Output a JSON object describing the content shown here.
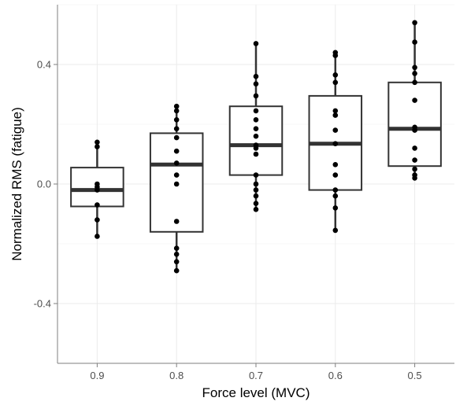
{
  "chart_data": {
    "type": "box",
    "title": "",
    "xlabel": "Force level (MVC)",
    "ylabel": "Normalized RMS (fatigue)",
    "ylim": [
      -0.6,
      0.6
    ],
    "yticks": [
      -0.4,
      0.0,
      0.4
    ],
    "ytick_labels": [
      "-0.4",
      "0.0",
      "0.4"
    ],
    "grid": true,
    "legend": "none",
    "colors": {
      "box_stroke": "#333333",
      "median": "#333333",
      "point": "#000000",
      "grid_major": "#ebebeb",
      "grid_minor": "#f5f5f5"
    },
    "categories": [
      "0.9",
      "0.8",
      "0.7",
      "0.6",
      "0.5"
    ],
    "boxes": [
      {
        "category": "0.9",
        "q1": -0.075,
        "median": -0.02,
        "q3": 0.055,
        "whisker_low": -0.175,
        "whisker_high": 0.14
      },
      {
        "category": "0.8",
        "q1": -0.16,
        "median": 0.065,
        "q3": 0.17,
        "whisker_low": -0.29,
        "whisker_high": 0.26
      },
      {
        "category": "0.7",
        "q1": 0.03,
        "median": 0.13,
        "q3": 0.26,
        "whisker_low": -0.085,
        "whisker_high": 0.47
      },
      {
        "category": "0.6",
        "q1": -0.02,
        "median": 0.135,
        "q3": 0.295,
        "whisker_low": -0.155,
        "whisker_high": 0.44
      },
      {
        "category": "0.5",
        "q1": 0.06,
        "median": 0.185,
        "q3": 0.34,
        "whisker_low": 0.025,
        "whisker_high": 0.54
      }
    ],
    "points": [
      {
        "category": "0.9",
        "values": [
          0.14,
          0.125,
          0.0,
          -0.01,
          -0.02,
          -0.07,
          -0.12,
          -0.175
        ]
      },
      {
        "category": "0.8",
        "values": [
          0.26,
          0.245,
          0.215,
          0.185,
          0.155,
          0.11,
          0.07,
          0.03,
          0.0,
          -0.125,
          -0.215,
          -0.235,
          -0.26,
          -0.29
        ]
      },
      {
        "category": "0.7",
        "values": [
          0.47,
          0.36,
          0.335,
          0.295,
          0.245,
          0.215,
          0.185,
          0.16,
          0.13,
          0.12,
          0.1,
          0.03,
          0.0,
          -0.02,
          -0.04,
          -0.065,
          -0.085
        ]
      },
      {
        "category": "0.6",
        "values": [
          0.44,
          0.43,
          0.365,
          0.34,
          0.245,
          0.23,
          0.18,
          0.135,
          0.065,
          0.03,
          -0.02,
          -0.04,
          -0.08,
          -0.155
        ]
      },
      {
        "category": "0.5",
        "values": [
          0.54,
          0.475,
          0.39,
          0.37,
          0.34,
          0.28,
          0.19,
          0.18,
          0.12,
          0.08,
          0.05,
          0.03,
          0.02
        ]
      }
    ]
  }
}
